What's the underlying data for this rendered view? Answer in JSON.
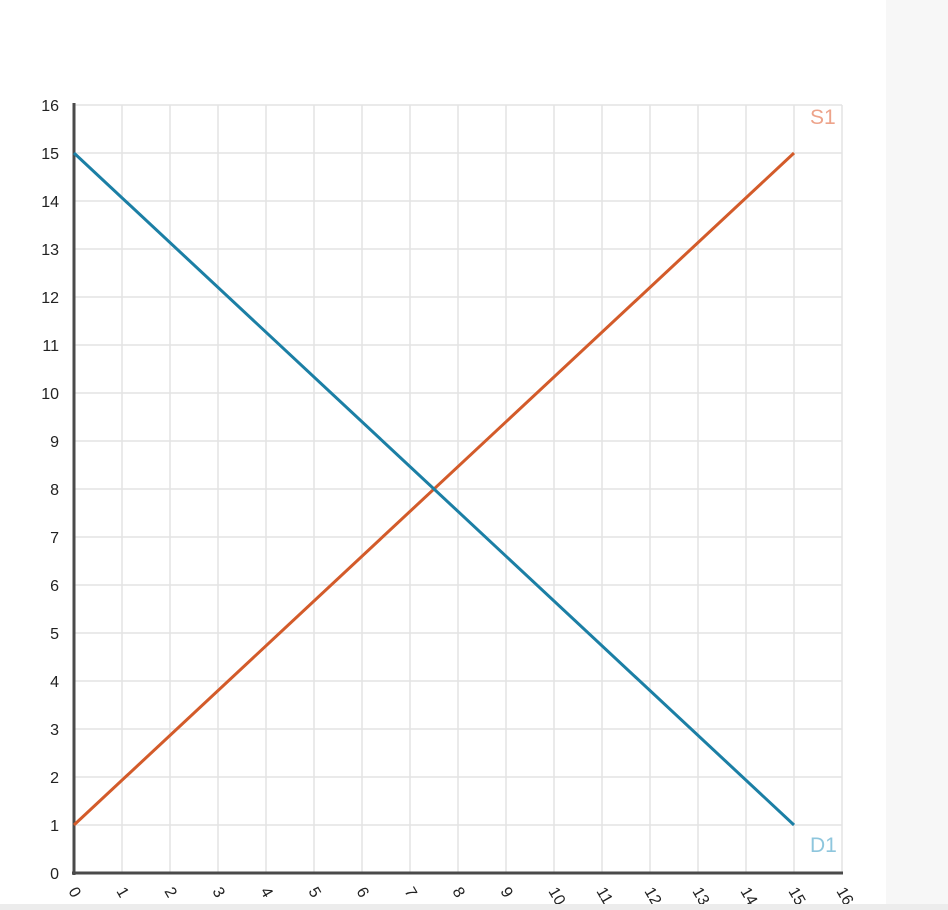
{
  "chart_data": {
    "type": "line",
    "xlim": [
      0,
      16
    ],
    "ylim": [
      0,
      16
    ],
    "x_ticks": [
      0,
      1,
      2,
      3,
      4,
      5,
      6,
      7,
      8,
      9,
      10,
      11,
      12,
      13,
      14,
      15,
      16
    ],
    "y_ticks": [
      0,
      1,
      2,
      3,
      4,
      5,
      6,
      7,
      8,
      9,
      10,
      11,
      12,
      13,
      14,
      15,
      16
    ],
    "x_tick_labels": [
      "0",
      "1",
      "2",
      "3",
      "4",
      "5",
      "6",
      "7",
      "8",
      "9",
      "10",
      "11",
      "12",
      "13",
      "14",
      "15",
      "16"
    ],
    "y_tick_labels": [
      "0",
      "1",
      "2",
      "3",
      "4",
      "5",
      "6",
      "7",
      "8",
      "9",
      "10",
      "11",
      "12",
      "13",
      "14",
      "15",
      "16"
    ],
    "grid": true,
    "series": [
      {
        "name": "S1",
        "color": "#d35b2a",
        "label_color": "#eda38a",
        "x": [
          0,
          15
        ],
        "y": [
          1,
          15
        ]
      },
      {
        "name": "D1",
        "color": "#1b7fa5",
        "label_color": "#8ec6dd",
        "x": [
          0,
          15
        ],
        "y": [
          15,
          1
        ]
      }
    ]
  },
  "colors": {
    "grid": "#e3e3e3",
    "axis": "#4a4a4a",
    "tick_text": "#222222"
  }
}
